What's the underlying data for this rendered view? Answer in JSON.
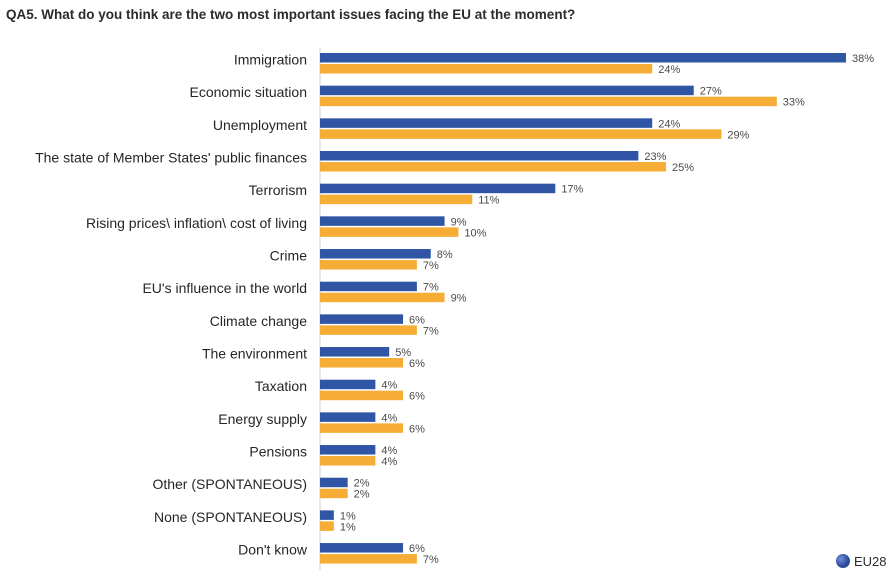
{
  "title": "QA5. What do you think are the two most important issues facing the EU at the moment?",
  "legend": {
    "label": "EU28",
    "icon": "globe-icon"
  },
  "colors": {
    "series_1": "#2f55a4",
    "series_2": "#f5ad35"
  },
  "chart_data": {
    "type": "bar",
    "orientation": "horizontal",
    "title": "QA5. What do you think are the two most important issues facing the EU at the moment?",
    "categories": [
      "Immigration",
      "Economic situation",
      "Unemployment",
      "The state of Member States' public finances",
      "Terrorism",
      "Rising prices\\ inflation\\ cost of living",
      "Crime",
      "EU's influence in the world",
      "Climate change",
      "The environment",
      "Taxation",
      "Energy supply",
      "Pensions",
      "Other (SPONTANEOUS)",
      "None (SPONTANEOUS)",
      "Don't know"
    ],
    "series": [
      {
        "color": "#2f55a4",
        "values": [
          38,
          27,
          24,
          23,
          17,
          9,
          8,
          7,
          6,
          5,
          4,
          4,
          4,
          2,
          1,
          6
        ]
      },
      {
        "color": "#f5ad35",
        "values": [
          24,
          33,
          29,
          25,
          11,
          10,
          7,
          9,
          7,
          6,
          6,
          6,
          4,
          2,
          1,
          7
        ]
      }
    ],
    "value_suffix": "%",
    "xlim": [
      0,
      38
    ],
    "grid": false,
    "legend_placement": "bottom-right"
  }
}
